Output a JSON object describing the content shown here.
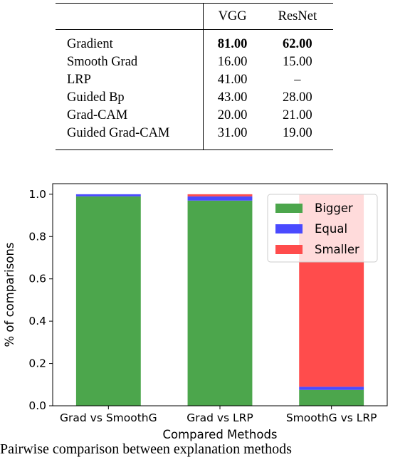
{
  "table": {
    "headers": [
      "",
      "VGG",
      "ResNet"
    ],
    "rows": [
      {
        "method": "Gradient",
        "vgg": "81.00",
        "resnet": "62.00",
        "bold": true
      },
      {
        "method": "Smooth Grad",
        "vgg": "16.00",
        "resnet": "15.00"
      },
      {
        "method": "LRP",
        "vgg": "41.00",
        "resnet": "–"
      },
      {
        "method": "Guided Bp",
        "vgg": "43.00",
        "resnet": "28.00"
      },
      {
        "method": "Grad-CAM",
        "vgg": "20.00",
        "resnet": "21.00"
      },
      {
        "method": "Guided Grad-CAM",
        "vgg": "31.00",
        "resnet": "19.00"
      }
    ]
  },
  "chart_data": {
    "type": "bar",
    "stacked": true,
    "categories": [
      "Grad vs SmoothG",
      "Grad vs LRP",
      "SmoothG vs LRP"
    ],
    "series": [
      {
        "name": "Bigger",
        "color": "#4ca64c",
        "values": [
          0.99,
          0.97,
          0.075
        ]
      },
      {
        "name": "Equal",
        "color": "#4a4aff",
        "values": [
          0.01,
          0.02,
          0.015
        ]
      },
      {
        "name": "Smaller",
        "color": "#ff4c4c",
        "values": [
          0.0,
          0.01,
          0.91
        ]
      }
    ],
    "xlabel": "Compared Methods",
    "ylabel": "% of comparisons",
    "ylim": [
      0,
      1.05
    ],
    "yticks": [
      "0.0",
      "0.2",
      "0.4",
      "0.6",
      "0.8",
      "1.0"
    ],
    "grid": false,
    "legend_position": "top-right"
  },
  "caption": {
    "text": "Pairwise comparison between explanation methods"
  }
}
